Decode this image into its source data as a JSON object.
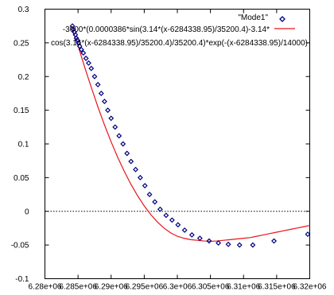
{
  "chart_data": {
    "type": "scatter",
    "title": "",
    "xlabel": "",
    "ylabel": "",
    "xlim": [
      6280000,
      6320000
    ],
    "ylim": [
      -0.1,
      0.3
    ],
    "x_ticks": [
      {
        "value": 6280000,
        "label": "6.28e+06"
      },
      {
        "value": 6285000,
        "label": "6.285e+06"
      },
      {
        "value": 6290000,
        "label": "6.29e+06"
      },
      {
        "value": 6295000,
        "label": "6.295e+06"
      },
      {
        "value": 6300000,
        "label": "6.3e+06"
      },
      {
        "value": 6305000,
        "label": "6.305e+06"
      },
      {
        "value": 6310000,
        "label": "6.31e+06"
      },
      {
        "value": 6315000,
        "label": "6.315e+06"
      },
      {
        "value": 6320000,
        "label": "6.32e+06"
      }
    ],
    "y_ticks": [
      {
        "value": -0.1,
        "label": "-0.1"
      },
      {
        "value": -0.05,
        "label": "-0.05"
      },
      {
        "value": 0,
        "label": "0"
      },
      {
        "value": 0.05,
        "label": "0.05"
      },
      {
        "value": 0.1,
        "label": "0.1"
      },
      {
        "value": 0.15,
        "label": "0.15"
      },
      {
        "value": 0.2,
        "label": "0.2"
      },
      {
        "value": 0.25,
        "label": "0.25"
      },
      {
        "value": 0.3,
        "label": "0.3"
      }
    ],
    "zero_line": true,
    "legend_position": "top-right",
    "colors": {
      "scatter": "#000080",
      "fit": "#e8141b",
      "axes": "#000000"
    },
    "series": [
      {
        "name": "\"Mode1\"",
        "type": "scatter",
        "marker": "diamond",
        "x": [
          6284150,
          6284300,
          6284450,
          6284600,
          6284750,
          6284900,
          6285050,
          6285250,
          6285500,
          6285800,
          6286200,
          6286600,
          6287000,
          6287500,
          6288000,
          6288500,
          6289000,
          6289500,
          6290000,
          6290600,
          6291200,
          6291800,
          6292400,
          6293000,
          6293700,
          6294400,
          6295100,
          6295800,
          6296600,
          6297400,
          6298300,
          6299200,
          6300100,
          6301100,
          6302200,
          6303400,
          6304800,
          6306200,
          6307700,
          6309400,
          6311400,
          6314600,
          6319700
        ],
        "y": [
          0.275,
          0.27,
          0.266,
          0.262,
          0.257,
          0.254,
          0.25,
          0.245,
          0.24,
          0.235,
          0.227,
          0.22,
          0.212,
          0.2,
          0.188,
          0.175,
          0.163,
          0.15,
          0.138,
          0.125,
          0.112,
          0.1,
          0.086,
          0.074,
          0.062,
          0.05,
          0.038,
          0.025,
          0.014,
          0.003,
          -0.006,
          -0.013,
          -0.02,
          -0.028,
          -0.035,
          -0.04,
          -0.044,
          -0.047,
          -0.049,
          -0.05,
          -0.05,
          -0.044,
          -0.034
        ]
      },
      {
        "name": "-3000*(0.0000386*sin(3.14*(x-6284338.95)/35200.4)-3.14*cos(3.14*(x-6284338.95)/35200.4)/35200.4)*exp(-(x-6284338.95)/14000)",
        "name_lines": [
          "-3000*(0.0000386*sin(3.14*(x-6284338.95)/35200.4)-3.14*",
          "cos(3.14*(x-6284338.95)/35200.4)/35200.4)*exp(-(x-6284338.95)/14000)"
        ],
        "type": "line",
        "x": [
          6284000,
          6285000,
          6286000,
          6287000,
          6288000,
          6289000,
          6290000,
          6291000,
          6292000,
          6293000,
          6294000,
          6295000,
          6296000,
          6297000,
          6298000,
          6299000,
          6300000,
          6301000,
          6302000,
          6303000,
          6304000,
          6305000,
          6306000,
          6307000,
          6308000,
          6309000,
          6310000,
          6311000,
          6312000,
          6313000,
          6314000,
          6315000,
          6316000,
          6317000,
          6318000,
          6319000,
          6320000
        ],
        "y": [
          0.273,
          0.246,
          0.214,
          0.184,
          0.155,
          0.128,
          0.103,
          0.08,
          0.059,
          0.04,
          0.023,
          0.008,
          -0.005,
          -0.016,
          -0.025,
          -0.032,
          -0.037,
          -0.04,
          -0.042,
          -0.043,
          -0.044,
          -0.0445,
          -0.044,
          -0.043,
          -0.042,
          -0.041,
          -0.04,
          -0.039,
          -0.037,
          -0.035,
          -0.033,
          -0.031,
          -0.029,
          -0.027,
          -0.025,
          -0.023,
          -0.021
        ]
      }
    ]
  }
}
